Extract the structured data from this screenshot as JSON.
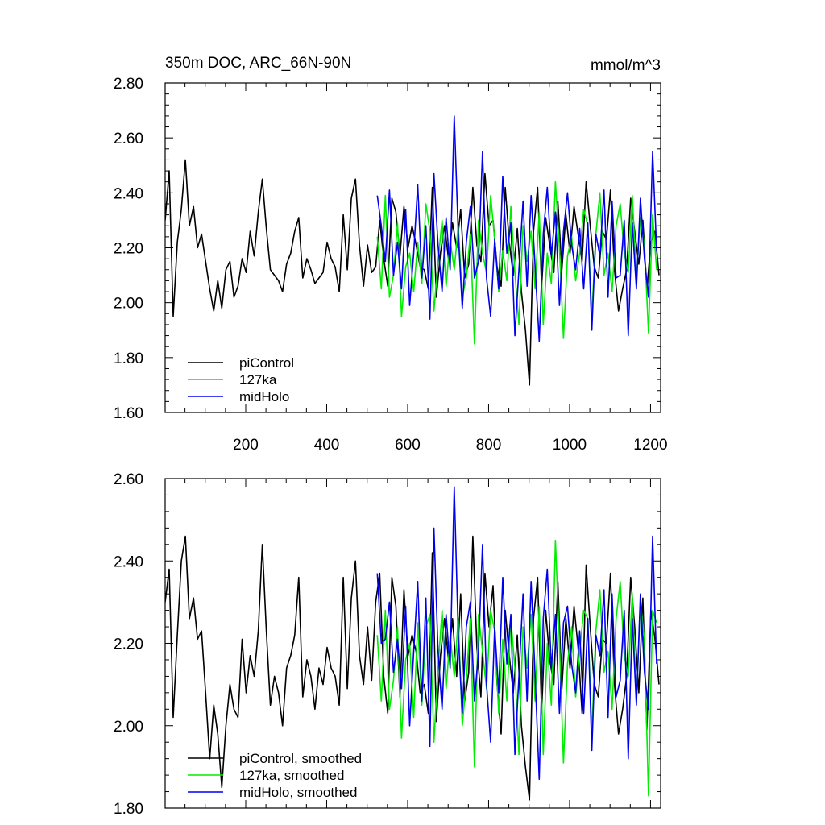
{
  "chart_data": [
    {
      "type": "line",
      "title": "350m DOC, ARC_66N-90N",
      "units": "mmol/m^3",
      "xlabel": "",
      "ylabel": "",
      "xlim": [
        1,
        1225
      ],
      "ylim": [
        1.6,
        2.8
      ],
      "x_ticks": [
        200,
        400,
        600,
        800,
        1000,
        1200
      ],
      "x_tick_labels": [
        "200",
        "400",
        "600",
        "800",
        "1000",
        "1200"
      ],
      "y_ticks": [
        1.6,
        1.8,
        2.0,
        2.2,
        2.4,
        2.6,
        2.8
      ],
      "y_tick_labels": [
        "1.60",
        "1.80",
        "2.00",
        "2.20",
        "2.40",
        "2.60",
        "2.80"
      ],
      "legend_position": "bottom-left",
      "series": [
        {
          "name": "piControl",
          "color": "#000000",
          "x_start": 1,
          "x_step": 10,
          "values": [
            2.3,
            2.48,
            1.95,
            2.22,
            2.34,
            2.52,
            2.28,
            2.35,
            2.2,
            2.25,
            2.15,
            2.05,
            1.97,
            2.08,
            1.98,
            2.12,
            2.15,
            2.02,
            2.06,
            2.16,
            2.11,
            2.26,
            2.17,
            2.33,
            2.45,
            2.27,
            2.12,
            2.1,
            2.08,
            2.04,
            2.14,
            2.18,
            2.26,
            2.31,
            2.09,
            2.16,
            2.12,
            2.07,
            2.09,
            2.11,
            2.22,
            2.16,
            2.13,
            2.04,
            2.32,
            2.12,
            2.38,
            2.45,
            2.21,
            2.06,
            2.21,
            2.11,
            2.13,
            2.3,
            2.16,
            2.06,
            2.38,
            2.33,
            2.17,
            2.35,
            2.2,
            2.28,
            2.21,
            2.13,
            2.12,
            2.05,
            2.42,
            2.02,
            2.18,
            2.28,
            2.16,
            2.29,
            2.2,
            2.34,
            2.09,
            2.14,
            2.42,
            2.21,
            2.15,
            2.47,
            2.28,
            2.3,
            2.13,
            2.06,
            2.42,
            2.22,
            2.1,
            2.27,
            2.04,
            1.9,
            1.7,
            2.26,
            2.42,
            2.06,
            2.31,
            2.21,
            2.11,
            2.37,
            2.12,
            2.32,
            2.18,
            2.35,
            2.25,
            2.15,
            2.44,
            2.28,
            2.13,
            2.09,
            2.26,
            2.23,
            2.41,
            2.12,
            1.97,
            2.05,
            2.12,
            2.38,
            2.26,
            2.14,
            2.3,
            2.05,
            2.22,
            2.26,
            2.1
          ]
        },
        {
          "name": "127ka",
          "color": "#00ee00",
          "x_start": 525,
          "x_step": 10,
          "values": [
            2.24,
            2.05,
            2.39,
            2.02,
            2.1,
            2.29,
            1.95,
            2.13,
            2.18,
            2.04,
            2.22,
            2.07,
            2.36,
            2.26,
            1.97,
            2.15,
            2.3,
            2.06,
            2.23,
            2.12,
            2.28,
            2.02,
            2.09,
            2.25,
            1.85,
            2.3,
            2.18,
            2.11,
            2.39,
            2.23,
            2.04,
            2.19,
            2.08,
            2.35,
            2.11,
            1.92,
            2.28,
            2.15,
            2.26,
            2.05,
            2.33,
            1.92,
            2.18,
            2.07,
            2.44,
            2.2,
            1.87,
            2.17,
            2.24,
            2.08,
            2.18,
            2.34,
            2.28,
            1.95,
            2.25,
            2.4,
            2.1,
            2.18,
            2.04,
            2.28,
            2.36,
            2.18,
            2.11,
            2.39,
            2.09,
            2.31,
            2.21,
            1.89,
            2.32,
            2.12
          ]
        },
        {
          "name": "midHolo",
          "color": "#0000ee",
          "x_start": 525,
          "x_step": 10,
          "values": [
            2.39,
            2.28,
            2.15,
            2.41,
            2.1,
            2.22,
            2.05,
            2.34,
            1.99,
            2.18,
            2.43,
            2.09,
            2.28,
            1.94,
            2.47,
            2.21,
            2.04,
            2.31,
            2.12,
            2.68,
            2.25,
            1.98,
            2.22,
            2.35,
            2.09,
            2.15,
            2.55,
            2.09,
            1.95,
            2.23,
            2.05,
            2.46,
            2.18,
            2.29,
            1.88,
            2.12,
            2.37,
            2.06,
            2.39,
            2.13,
            1.86,
            2.25,
            2.42,
            2.17,
            2.33,
            1.99,
            2.26,
            2.4,
            2.21,
            2.12,
            2.27,
            2.05,
            2.29,
            1.9,
            2.25,
            2.17,
            2.41,
            2.02,
            2.37,
            2.09,
            2.1,
            2.3,
            1.88,
            2.29,
            2.05,
            2.38,
            2.16,
            2.02,
            2.55,
            2.19
          ]
        }
      ]
    },
    {
      "type": "line",
      "title": "",
      "xlabel": "",
      "ylabel": "",
      "xlim": [
        1,
        1225
      ],
      "ylim": [
        1.8,
        2.6
      ],
      "y_ticks": [
        1.8,
        2.0,
        2.2,
        2.4,
        2.6
      ],
      "y_tick_labels": [
        "1.80",
        "2.00",
        "2.20",
        "2.40",
        "2.60"
      ],
      "legend_position": "bottom-left",
      "series": [
        {
          "name": "piControl, smoothed",
          "color": "#000000",
          "x_start": 1,
          "x_step": 10,
          "values": [
            2.3,
            2.38,
            2.02,
            2.22,
            2.4,
            2.46,
            2.26,
            2.31,
            2.21,
            2.23,
            2.08,
            1.92,
            2.05,
            1.98,
            1.85,
            2.0,
            2.1,
            2.04,
            2.02,
            2.21,
            2.08,
            2.17,
            2.12,
            2.23,
            2.44,
            2.23,
            2.05,
            2.12,
            2.08,
            2.0,
            2.14,
            2.17,
            2.22,
            2.36,
            2.07,
            2.16,
            2.12,
            2.04,
            2.14,
            2.1,
            2.19,
            2.14,
            2.12,
            2.05,
            2.36,
            2.09,
            2.31,
            2.4,
            2.17,
            2.1,
            2.24,
            2.11,
            2.3,
            2.37,
            2.12,
            2.03,
            2.36,
            2.29,
            2.07,
            2.33,
            2.17,
            2.22,
            2.18,
            2.08,
            2.1,
            2.03,
            2.42,
            2.01,
            2.17,
            2.26,
            2.16,
            2.26,
            2.12,
            2.32,
            2.06,
            2.13,
            2.46,
            2.19,
            2.07,
            2.37,
            2.24,
            2.34,
            2.1,
            1.98,
            2.28,
            2.17,
            2.08,
            2.22,
            2.0,
            1.9,
            1.82,
            2.26,
            2.36,
            2.03,
            2.28,
            2.16,
            2.1,
            2.35,
            2.09,
            2.26,
            2.14,
            2.29,
            2.19,
            2.03,
            2.39,
            2.24,
            2.1,
            2.07,
            2.21,
            2.2,
            2.37,
            2.1,
            1.98,
            2.04,
            2.12,
            2.36,
            2.24,
            2.08,
            2.31,
            1.99,
            2.28,
            2.21,
            2.1
          ]
        },
        {
          "name": "127ka, smoothed",
          "color": "#00ee00",
          "x_start": 525,
          "x_step": 10,
          "values": [
            2.22,
            2.06,
            2.28,
            2.04,
            2.11,
            2.24,
            1.97,
            2.16,
            2.2,
            2.02,
            2.25,
            2.05,
            2.24,
            2.27,
            1.96,
            2.14,
            2.28,
            2.09,
            2.22,
            2.12,
            2.26,
            2.0,
            2.11,
            2.26,
            1.9,
            2.27,
            2.18,
            2.09,
            2.28,
            2.23,
            2.03,
            2.21,
            2.06,
            2.26,
            2.14,
            1.93,
            2.24,
            2.14,
            2.27,
            2.06,
            2.29,
            1.93,
            2.2,
            2.05,
            2.45,
            2.2,
            1.91,
            2.15,
            2.24,
            2.07,
            2.18,
            2.28,
            2.26,
            1.98,
            2.23,
            2.33,
            2.13,
            2.18,
            2.04,
            2.26,
            2.35,
            2.17,
            2.12,
            2.32,
            2.06,
            2.3,
            2.21,
            1.83,
            2.28,
            2.25
          ]
        },
        {
          "name": "midHolo, smoothed",
          "color": "#0000ee",
          "x_start": 525,
          "x_step": 10,
          "values": [
            2.37,
            2.2,
            2.21,
            2.3,
            2.13,
            2.21,
            2.09,
            2.29,
            2.0,
            2.18,
            2.35,
            2.06,
            2.31,
            1.95,
            2.48,
            2.18,
            2.04,
            2.27,
            2.14,
            2.58,
            2.22,
            2.03,
            2.24,
            2.3,
            2.06,
            2.18,
            2.44,
            2.1,
            1.96,
            2.24,
            2.08,
            2.36,
            2.15,
            2.27,
            1.93,
            2.12,
            2.32,
            2.06,
            2.35,
            2.12,
            1.87,
            2.26,
            2.38,
            2.14,
            2.27,
            2.03,
            2.25,
            2.29,
            2.15,
            2.08,
            2.23,
            2.03,
            2.26,
            1.94,
            2.22,
            2.17,
            2.33,
            2.02,
            2.32,
            2.07,
            2.11,
            2.28,
            1.92,
            2.26,
            2.05,
            2.32,
            2.13,
            2.04,
            2.46,
            2.15
          ]
        }
      ]
    }
  ]
}
